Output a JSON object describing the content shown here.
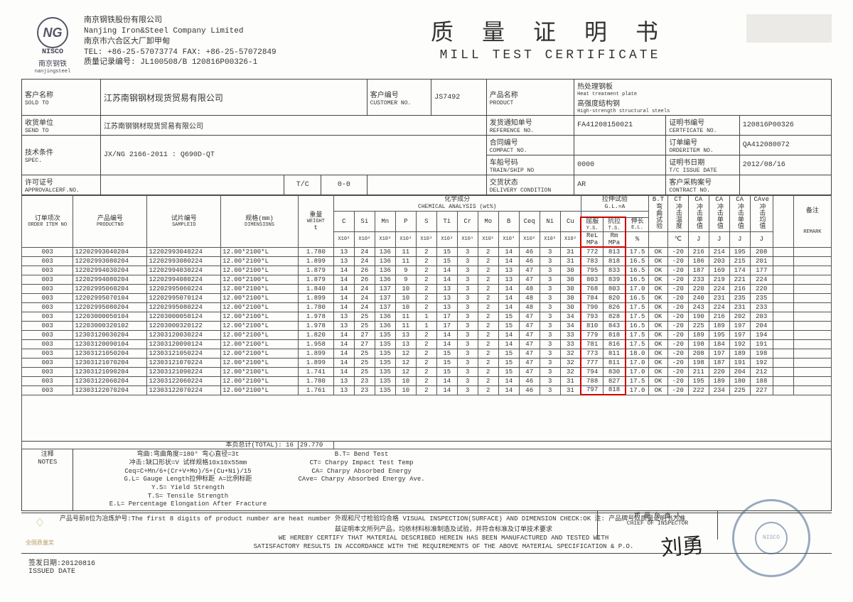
{
  "logo": {
    "initials": "NG",
    "nisco": "NISCO",
    "cn": "南京钢铁",
    "en": "nanjingsteel"
  },
  "company": {
    "line1_cn": "南京钢铁股份有限公司",
    "line1_en": "Nanjing Iron&Steel Company Limited",
    "line2_cn": "南京市六合区大厂卸甲甸",
    "line3": "TEL: +86-25-57073774   FAX: +86-25-57072849",
    "line4": "质量记录编号: JL100508/B  120816P00326-1"
  },
  "title": {
    "cn": "质 量 证 明 书",
    "en": "MILL TEST CERTIFICATE"
  },
  "info": {
    "sold_to_lbl_cn": "客户名称",
    "sold_to_lbl_en": "SOLD TO",
    "sold_to": "江苏南钢钢材现货贸易有限公司",
    "customer_no_lbl_cn": "客户编号",
    "customer_no_lbl_en": "CUSTOMER NO.",
    "customer_no": "JS7492",
    "product_lbl_cn": "产品名称",
    "product_lbl_en": "PRODUCT",
    "product_v1_cn": "热处理钢板",
    "product_v1_en": "Heat treatment plate",
    "product_v2_cn": "高强度结构钢",
    "product_v2_en": "High-strength structural steels",
    "send_to_lbl_cn": "收货单位",
    "send_to_lbl_en": "SEND TO",
    "send_to": "江苏南钢钢材现货贸易有限公司",
    "ref_no_lbl_cn": "发货通知单号",
    "ref_no_lbl_en": "REFERENCE NO.",
    "ref_no": "FA41208150021",
    "cert_no_lbl_cn": "证明书编号",
    "cert_no_lbl_en": "CERTFICATE NO.",
    "cert_no": "120816P00326",
    "compact_lbl_cn": "合同编号",
    "compact_lbl_en": "COMPACT NO.",
    "compact": "",
    "orderitem_lbl_cn": "订单编号",
    "orderitem_lbl_en": "ORDERITEM NO.",
    "orderitem": "QA412080072",
    "spec_lbl_cn": "技术条件",
    "spec_lbl_en": "SPEC.",
    "spec": "JX/NG 2166-2011 : Q690D-QT",
    "ship_lbl_cn": "车船号码",
    "ship_lbl_en": "TRAIN/SHIP NO",
    "ship": "0000",
    "issue_lbl_cn": "证明书日期",
    "issue_lbl_en": "T/C ISSUE DATE",
    "issue": "2012/08/16",
    "approval_lbl_cn": "许可证号",
    "approval_lbl_en": "APPROVALCERF.NO.",
    "tc": "T/C",
    "tc_val": "0-0",
    "delivery_lbl_cn": "交货状态",
    "delivery_lbl_en": "DELIVERY CONDITION",
    "delivery": "AR",
    "contract_lbl_cn": "客户采购案号",
    "contract_lbl_en": "CONTRACT NO.",
    "contract": ""
  },
  "cols": {
    "order_cn": "订单项次",
    "order_en": "ORDER ITEM NO",
    "prod_cn": "产品编号",
    "prod_en": "PRODUCTNO",
    "sample_cn": "试片编号",
    "sample_en": "SAMPLEID",
    "dim_cn": "规格(mm)",
    "dim_en": "DIMENSIONS",
    "wt_cn": "重量",
    "wt_en": "WEIGHT",
    "wt_unit": "t",
    "chem_cn": "化学成分",
    "chem_en": "CHEMICAL ANALYSIS (wt%)",
    "tensile_cn": "拉伸试验",
    "tensile_en": "G.L.=A",
    "bt_cn": "B.T",
    "bt_cn2": "弯曲试验",
    "ct_cn": "CT",
    "ct_cn2": "冲击温度",
    "ca_cn": "CA",
    "ca_cn2": "冲击单值",
    "cave_cn": "CAve",
    "cave_cn2": "冲击均值",
    "remark_cn": "备注",
    "remark_en": "REMARK",
    "chem": [
      "C",
      "Si",
      "Mn",
      "P",
      "S",
      "Ti",
      "Cr",
      "Mo",
      "B",
      "Ceq",
      "Ni",
      "Cu"
    ],
    "chem_mult": [
      "X10²",
      "X10²",
      "X10²",
      "X10³",
      "X10³",
      "X10³",
      "X10¹",
      "X10¹",
      "X10⁴",
      "X10²",
      "X10²",
      "X10²"
    ],
    "ys_cn": "屈服",
    "ys_en": "Y.S.",
    "ys_sub": "ReL",
    "ys_unit": "MPa",
    "ts_cn": "抗拉",
    "ts_en": "T.S.",
    "ts_sub": "Rm",
    "ts_unit": "MPa",
    "el_cn": "伸长",
    "el_en": "E.L.",
    "el_unit": "%",
    "ct_unit": "℃",
    "ca_unit": "J"
  },
  "rows": [
    {
      "o": "003",
      "p": "12202993040204",
      "s": "12202993040224",
      "d": "12.00*2100*L",
      "w": "1.780",
      "c": [
        "13",
        "24",
        "136",
        "11",
        "2",
        "15",
        "3",
        "2",
        "14",
        "46",
        "3",
        "31"
      ],
      "ys": "772",
      "ts": "813",
      "el": "17.5",
      "bt": "OK",
      "ct": "-20",
      "ca": [
        "216",
        "214",
        "195"
      ],
      "cave": "208"
    },
    {
      "o": "003",
      "p": "12202993080204",
      "s": "12202993080224",
      "d": "12.00*2100*L",
      "w": "1.899",
      "c": [
        "13",
        "24",
        "136",
        "11",
        "2",
        "15",
        "3",
        "2",
        "14",
        "46",
        "3",
        "31"
      ],
      "ys": "783",
      "ts": "818",
      "el": "16.5",
      "bt": "OK",
      "ct": "-20",
      "ca": [
        "186",
        "203",
        "215"
      ],
      "cave": "201"
    },
    {
      "o": "003",
      "p": "12202994030204",
      "s": "12202994030224",
      "d": "12.00*2100*L",
      "w": "1.879",
      "c": [
        "14",
        "26",
        "136",
        "9",
        "2",
        "14",
        "3",
        "2",
        "13",
        "47",
        "3",
        "30"
      ],
      "ys": "795",
      "ts": "833",
      "el": "16.5",
      "bt": "OK",
      "ct": "-20",
      "ca": [
        "187",
        "169",
        "174"
      ],
      "cave": "177"
    },
    {
      "o": "003",
      "p": "12202994080204",
      "s": "12202994080224",
      "d": "12.00*2100*L",
      "w": "1.879",
      "c": [
        "14",
        "26",
        "136",
        "9",
        "2",
        "14",
        "3",
        "2",
        "13",
        "47",
        "3",
        "30"
      ],
      "ys": "803",
      "ts": "839",
      "el": "16.5",
      "bt": "OK",
      "ct": "-20",
      "ca": [
        "233",
        "219",
        "221"
      ],
      "cave": "224"
    },
    {
      "o": "003",
      "p": "12202995060204",
      "s": "12202995060224",
      "d": "12.00*2100*L",
      "w": "1.840",
      "c": [
        "14",
        "24",
        "137",
        "10",
        "2",
        "13",
        "3",
        "2",
        "14",
        "48",
        "3",
        "30"
      ],
      "ys": "768",
      "ts": "803",
      "el": "17.0",
      "bt": "OK",
      "ct": "-20",
      "ca": [
        "220",
        "224",
        "216"
      ],
      "cave": "220"
    },
    {
      "o": "003",
      "p": "12202995070104",
      "s": "12202995070124",
      "d": "12.00*2100*L",
      "w": "1.899",
      "c": [
        "14",
        "24",
        "137",
        "10",
        "2",
        "13",
        "3",
        "2",
        "14",
        "48",
        "3",
        "30"
      ],
      "ys": "784",
      "ts": "820",
      "el": "16.5",
      "bt": "OK",
      "ct": "-20",
      "ca": [
        "240",
        "231",
        "235"
      ],
      "cave": "235"
    },
    {
      "o": "003",
      "p": "12202995080204",
      "s": "12202995080224",
      "d": "12.00*2100*L",
      "w": "1.780",
      "c": [
        "14",
        "24",
        "137",
        "10",
        "2",
        "13",
        "3",
        "2",
        "14",
        "48",
        "3",
        "30"
      ],
      "ys": "790",
      "ts": "826",
      "el": "17.5",
      "bt": "OK",
      "ct": "-20",
      "ca": [
        "243",
        "224",
        "231"
      ],
      "cave": "233"
    },
    {
      "o": "003",
      "p": "12203000050104",
      "s": "12203000050124",
      "d": "12.00*2100*L",
      "w": "1.978",
      "c": [
        "13",
        "25",
        "136",
        "11",
        "1",
        "17",
        "3",
        "2",
        "15",
        "47",
        "3",
        "34"
      ],
      "ys": "793",
      "ts": "828",
      "el": "17.5",
      "bt": "OK",
      "ct": "-20",
      "ca": [
        "190",
        "216",
        "202"
      ],
      "cave": "203"
    },
    {
      "o": "003",
      "p": "12203000320102",
      "s": "12203000320122",
      "d": "12.00*2100*L",
      "w": "1.978",
      "c": [
        "13",
        "25",
        "136",
        "11",
        "1",
        "17",
        "3",
        "2",
        "15",
        "47",
        "3",
        "34"
      ],
      "ys": "810",
      "ts": "843",
      "el": "16.5",
      "bt": "OK",
      "ct": "-20",
      "ca": [
        "225",
        "189",
        "197"
      ],
      "cave": "204"
    },
    {
      "o": "003",
      "p": "12303120030204",
      "s": "12303120030224",
      "d": "12.00*2100*L",
      "w": "1.820",
      "c": [
        "14",
        "27",
        "135",
        "13",
        "2",
        "14",
        "3",
        "2",
        "14",
        "47",
        "3",
        "33"
      ],
      "ys": "779",
      "ts": "818",
      "el": "17.5",
      "bt": "OK",
      "ct": "-20",
      "ca": [
        "189",
        "195",
        "197"
      ],
      "cave": "194"
    },
    {
      "o": "003",
      "p": "12303120090104",
      "s": "12303120090124",
      "d": "12.00*2100*L",
      "w": "1.958",
      "c": [
        "14",
        "27",
        "135",
        "13",
        "2",
        "14",
        "3",
        "2",
        "14",
        "47",
        "3",
        "33"
      ],
      "ys": "781",
      "ts": "816",
      "el": "17.5",
      "bt": "OK",
      "ct": "-20",
      "ca": [
        "198",
        "184",
        "192"
      ],
      "cave": "191"
    },
    {
      "o": "003",
      "p": "12303121050204",
      "s": "12303121050224",
      "d": "12.00*2100*L",
      "w": "1.899",
      "c": [
        "14",
        "25",
        "135",
        "12",
        "2",
        "15",
        "3",
        "2",
        "15",
        "47",
        "3",
        "32"
      ],
      "ys": "773",
      "ts": "811",
      "el": "18.0",
      "bt": "OK",
      "ct": "-20",
      "ca": [
        "208",
        "197",
        "189"
      ],
      "cave": "198"
    },
    {
      "o": "003",
      "p": "12303121070204",
      "s": "12303121070224",
      "d": "12.00*2100*L",
      "w": "1.899",
      "c": [
        "14",
        "25",
        "135",
        "12",
        "2",
        "15",
        "3",
        "2",
        "15",
        "47",
        "3",
        "32"
      ],
      "ys": "777",
      "ts": "811",
      "el": "17.0",
      "bt": "OK",
      "ct": "-20",
      "ca": [
        "198",
        "187",
        "191"
      ],
      "cave": "192"
    },
    {
      "o": "003",
      "p": "12303121090204",
      "s": "12303121090224",
      "d": "12.00*2100*L",
      "w": "1.741",
      "c": [
        "14",
        "25",
        "135",
        "12",
        "2",
        "15",
        "3",
        "2",
        "15",
        "47",
        "3",
        "32"
      ],
      "ys": "794",
      "ts": "830",
      "el": "17.0",
      "bt": "OK",
      "ct": "-20",
      "ca": [
        "211",
        "220",
        "204"
      ],
      "cave": "212"
    },
    {
      "o": "003",
      "p": "12303122060204",
      "s": "12303122060224",
      "d": "12.00*2100*L",
      "w": "1.780",
      "c": [
        "13",
        "23",
        "135",
        "10",
        "2",
        "14",
        "3",
        "2",
        "14",
        "46",
        "3",
        "31"
      ],
      "ys": "788",
      "ts": "827",
      "el": "17.5",
      "bt": "OK",
      "ct": "-20",
      "ca": [
        "195",
        "189",
        "180"
      ],
      "cave": "188"
    },
    {
      "o": "003",
      "p": "12303122070204",
      "s": "12303122070224",
      "d": "12.00*2100*L",
      "w": "1.761",
      "c": [
        "13",
        "23",
        "135",
        "10",
        "2",
        "14",
        "3",
        "2",
        "14",
        "46",
        "3",
        "31"
      ],
      "ys": "797",
      "ts": "818",
      "el": "17.0",
      "bt": "OK",
      "ct": "-20",
      "ca": [
        "222",
        "234",
        "225"
      ],
      "cave": "227"
    }
  ],
  "total": {
    "label": "本页总计(TOTAL):",
    "count": "16",
    "weight": "29.770"
  },
  "notes": {
    "lbl_cn": "注释",
    "lbl_en": "NOTES",
    "l1": "弯曲:弯曲角度=180°    弯心直径=3t",
    "l2": "冲击:缺口形状=V    试样规格10x10x55mm",
    "l3": "Ceq=C+Mn/6+(Cr+V+Mo)/5+(Cu+Ni)/15",
    "l4": "G.L=   Gauge Length拉伸标距  A=比例标距",
    "l5": "Y.S=   Yield Strength",
    "l6": "T.S=   Tensile Strength",
    "l7": "E.L=   Percentage Elongation After Fracture",
    "r1": "B.T=   Bend Test",
    "r2": "CT=   Charpy Impact Test Temp",
    "r3": "CA=   Charpy Absorbed Energy",
    "r4": "CAve=  Charpy Absorbed Energy Ave."
  },
  "cert": {
    "badge_text": "全国质量奖",
    "line_cn1": "产品号前8位为冶炼炉号:The first 8 digits of product number are heat number   外观和尺寸检验均合格 VISUAL INSPECTION(SURFACE) AND DIMENSION CHECK:OK  注: 产品牌号以质量证明书为准",
    "line_cn2": "兹证明本文所列产品，均依材料标准制造及试验，并符合标准及订单技术要求",
    "line_en1": "WE HEREBY CERTIFY THAT MATERIAL DESCRIBED HEREIN HAS BEEN MANUFACTURED AND TESTED WITH",
    "line_en2": "SATISFACTORY RESULTS IN ACCORDANCE WITH THE REQUIREMENTS OF THE ABOVE MATERIAL SPECIFICATION & P.O.",
    "chief_cn": "质 量 负 责 人",
    "chief_en": "CHIEF OF INSPECTOR",
    "stamp_outer": "NANJING IRON & STEEL CO.,LTD",
    "stamp_inner": "NISCO"
  },
  "issued": {
    "lbl_cn": "签发日期:",
    "val": "20120816",
    "lbl_en": "ISSUED DATE"
  }
}
